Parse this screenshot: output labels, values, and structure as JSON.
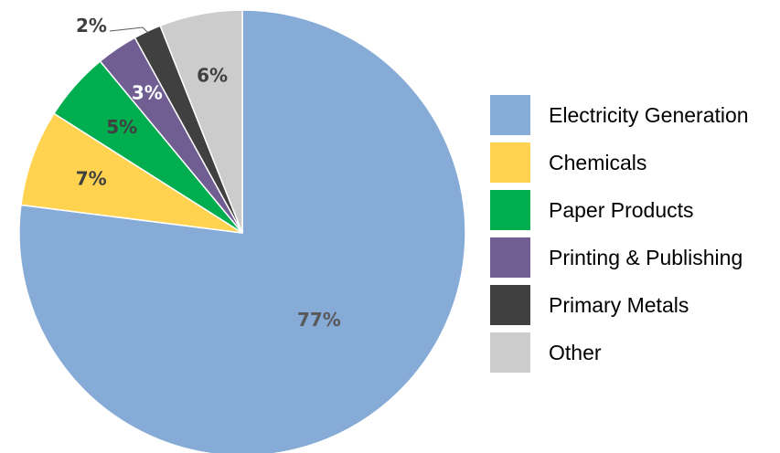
{
  "chart_data": {
    "type": "pie",
    "title": "",
    "start": "12 o'clock",
    "direction": "clockwise",
    "legend_placement": "right",
    "slices": [
      {
        "name": "Electricity Generation",
        "value": 77,
        "label": "77%",
        "color": "#86abd6",
        "label_color": "#595959"
      },
      {
        "name": "Chemicals",
        "value": 7,
        "label": "7%",
        "color": "#ffd34f",
        "label_color": "#404040"
      },
      {
        "name": "Paper Products",
        "value": 5,
        "label": "5%",
        "color": "#00ae50",
        "label_color": "#404040"
      },
      {
        "name": "Printing & Publishing",
        "value": 3,
        "label": "3%",
        "color": "#705e93",
        "label_color": "#ffffff"
      },
      {
        "name": "Primary Metals",
        "value": 2,
        "label": "2%",
        "color": "#404040",
        "label_color": "#404040"
      },
      {
        "name": "Other",
        "value": 6,
        "label": "6%",
        "color": "#cccccc",
        "label_color": "#404040"
      }
    ]
  }
}
